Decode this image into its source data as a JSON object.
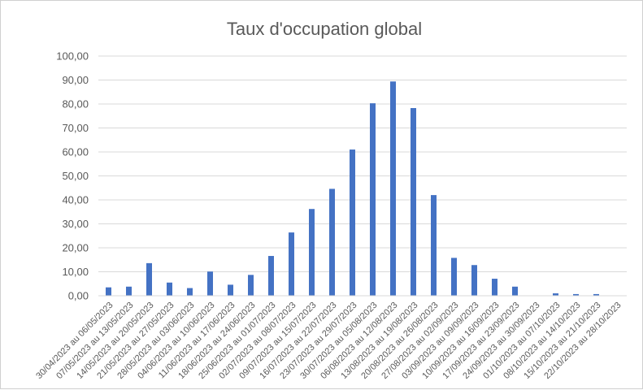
{
  "chart_data": {
    "type": "bar",
    "title": "Taux d'occupation global",
    "xlabel": "",
    "ylabel": "",
    "ylim": [
      0,
      100
    ],
    "yticks": [
      "0,00",
      "10,00",
      "20,00",
      "30,00",
      "40,00",
      "50,00",
      "60,00",
      "70,00",
      "80,00",
      "90,00",
      "100,00"
    ],
    "grid": true,
    "legend": "none",
    "bar_color": "#4472c4",
    "grid_color": "#d9d9d9",
    "categories": [
      "30/04/2023 au 06/05/2023",
      "07/05/2023 au 13/05/2023",
      "14/05/2023 au 20/05/2023",
      "21/05/2023 au 27/05/2023",
      "28/05/2023 au 03/06/2023",
      "04/06/2023 au 10/06/2023",
      "11/06/2023 au 17/06/2023",
      "18/06/2023 au 24/06/2023",
      "25/06/2023 au 01/07/2023",
      "02/07/2023 au 08/07/2023",
      "09/07/2023 au 15/07/2023",
      "16/07/2023 au 22/07/2023",
      "23/07/2023 au 29/07/2023",
      "30/07/2023 au 05/08/2023",
      "06/08/2023 au 12/08/2023",
      "13/08/2023 au 19/08/2023",
      "20/08/2023 au 26/08/2023",
      "27/08/2023 au 02/09/2023",
      "03/09/2023 au 09/09/2023",
      "10/09/2023 au 16/09/2023",
      "17/09/2023 au 23/09/2023",
      "24/09/2023 au 30/09/2023",
      "01/10/2023 au 07/10/2023",
      "08/10/2023 au 14/10/2023",
      "15/10/2023 au 21/10/2023",
      "22/10/2023 au 28/10/2023"
    ],
    "values": [
      3.5,
      3.8,
      13.6,
      5.5,
      3.2,
      10.1,
      4.6,
      8.7,
      16.6,
      26.4,
      36.2,
      44.6,
      61.0,
      80.3,
      89.4,
      78.3,
      42.0,
      15.8,
      12.8,
      7.1,
      3.8,
      0.0,
      1.0,
      0.7,
      0.7,
      0.0
    ]
  }
}
